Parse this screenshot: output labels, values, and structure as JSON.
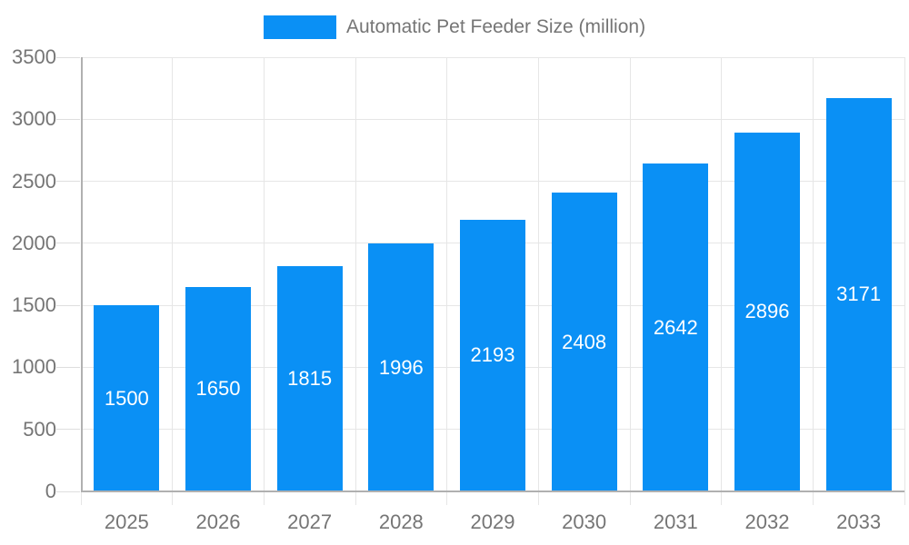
{
  "legend": {
    "label": "Automatic Pet Feeder Size (million)"
  },
  "chart_data": {
    "type": "bar",
    "title": "Automatic Pet Feeder Size (million)",
    "series_name": "Automatic Pet Feeder Size (million)",
    "categories": [
      "2025",
      "2026",
      "2027",
      "2028",
      "2029",
      "2030",
      "2031",
      "2032",
      "2033"
    ],
    "values": [
      1500,
      1650,
      1815,
      1996,
      2193,
      2408,
      2642,
      2896,
      3171
    ],
    "xlabel": "",
    "ylabel": "",
    "ylim": [
      0,
      3500
    ],
    "ytick_step": 500,
    "ytick_labels": [
      "0",
      "500",
      "1000",
      "1500",
      "2000",
      "2500",
      "3000",
      "3500"
    ],
    "grid": true,
    "legend_position": "top",
    "value_labels_shown": true,
    "colors": {
      "bar": "#0a90f5",
      "value_label": "#ffffff",
      "axis_text": "#757575",
      "grid_line": "#e6e6e6",
      "axis_line": "#b0b0b0"
    }
  }
}
